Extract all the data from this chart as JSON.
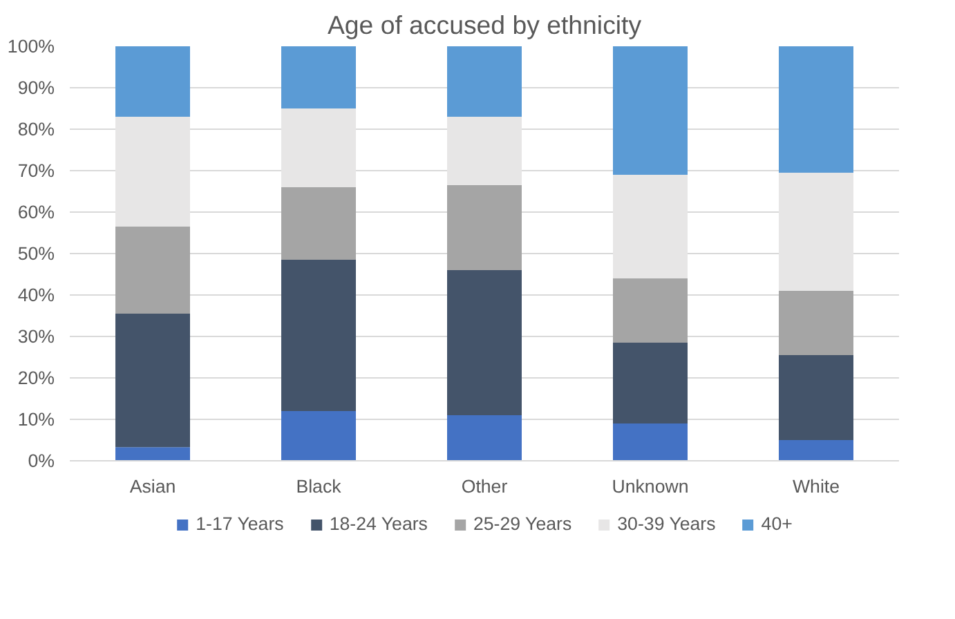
{
  "chart_data": {
    "type": "bar",
    "title": "Age of accused by ethnicity",
    "stacked": true,
    "categories": [
      "Asian",
      "Black",
      "Other",
      "Unknown",
      "White"
    ],
    "series": [
      {
        "name": "1-17 Years",
        "color": "#4472c4",
        "values": [
          3.3,
          12,
          11,
          9,
          5
        ]
      },
      {
        "name": "18-24 Years",
        "color": "#44546a",
        "values": [
          32.2,
          36.5,
          35,
          19.5,
          20.5
        ]
      },
      {
        "name": "25-29 Years",
        "color": "#a5a5a5",
        "values": [
          21,
          17.5,
          20.5,
          15.5,
          15.5
        ]
      },
      {
        "name": "30-39 Years",
        "color": "#e7e6e6",
        "values": [
          26.5,
          19,
          16.5,
          25,
          28.5
        ]
      },
      {
        "name": "40+",
        "color": "#5b9bd5",
        "values": [
          17,
          15,
          17,
          31,
          30.5
        ]
      }
    ],
    "ylim": [
      0,
      100
    ],
    "yticks": [
      {
        "value": 0,
        "label": "0%"
      },
      {
        "value": 10,
        "label": "10%"
      },
      {
        "value": 20,
        "label": "20%"
      },
      {
        "value": 30,
        "label": "30%"
      },
      {
        "value": 40,
        "label": "40%"
      },
      {
        "value": 50,
        "label": "50%"
      },
      {
        "value": 60,
        "label": "60%"
      },
      {
        "value": 70,
        "label": "70%"
      },
      {
        "value": 80,
        "label": "80%"
      },
      {
        "value": 90,
        "label": "90%"
      },
      {
        "value": 100,
        "label": "100%"
      }
    ],
    "grid": "y",
    "legend": "bottom"
  }
}
